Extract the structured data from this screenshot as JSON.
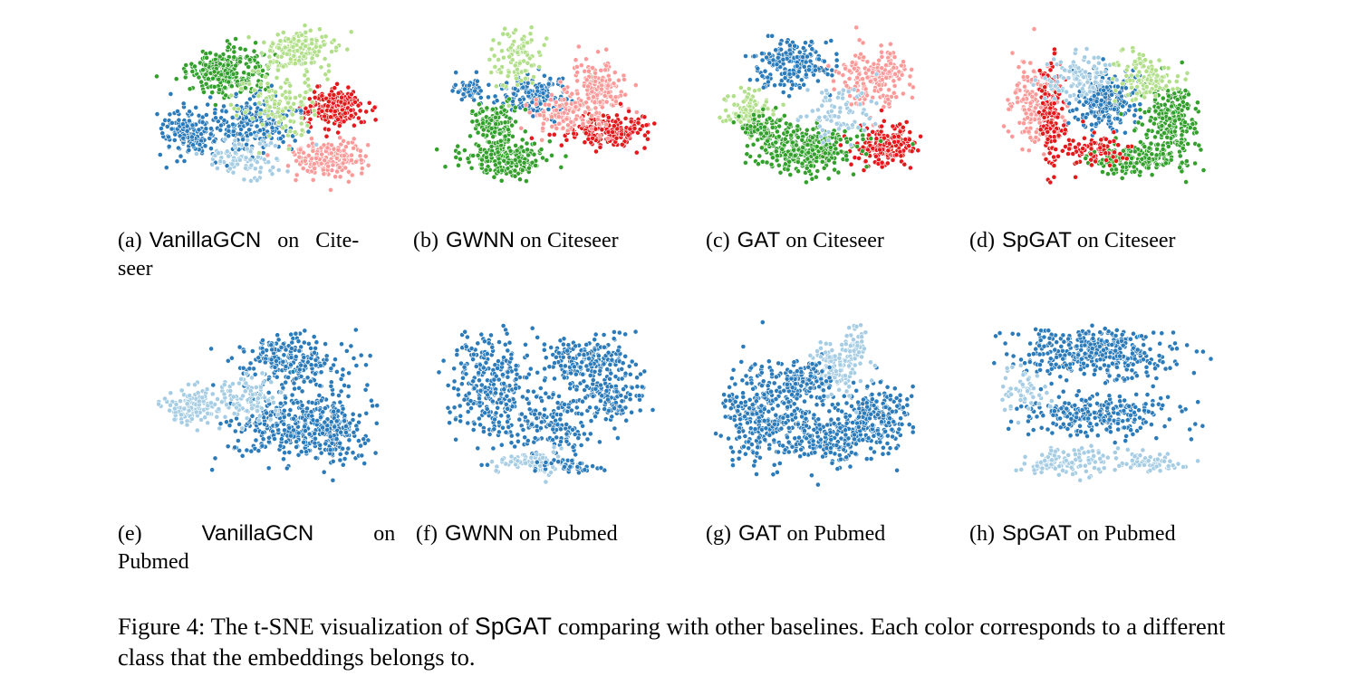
{
  "figure": {
    "caption_prefix": "Figure 4: The t-SNE visualization of",
    "caption_method": "SpGAT",
    "caption_rest": "comparing with other baselines. Each color corresponds to a different class that the embeddings belongs to."
  },
  "class_colors": {
    "dark_blue": "#2b7bba",
    "light_blue": "#a6cde3",
    "dark_green": "#33a02c",
    "light_green": "#b2df8a",
    "red": "#e31a1c",
    "pink": "#fb9a99"
  },
  "panels": [
    {
      "id": "a",
      "tag": "(a)",
      "method": "VanillaGCN",
      "rest": "on Citeseer",
      "dataset": "Citeseer",
      "point_colors": [
        "dark_blue",
        "light_blue",
        "dark_green",
        "light_green",
        "red",
        "pink"
      ],
      "caption_line1": "VanillaGCN   on   Cite-",
      "caption_line2": "seer"
    },
    {
      "id": "b",
      "tag": "(b)",
      "method": "GWNN",
      "rest": "on Citeseer",
      "dataset": "Citeseer",
      "point_colors": [
        "dark_blue",
        "light_blue",
        "dark_green",
        "light_green",
        "red",
        "pink"
      ]
    },
    {
      "id": "c",
      "tag": "(c)",
      "method": "GAT",
      "rest": "on Citeseer",
      "dataset": "Citeseer",
      "point_colors": [
        "dark_blue",
        "light_blue",
        "dark_green",
        "light_green",
        "red",
        "pink"
      ]
    },
    {
      "id": "d",
      "tag": "(d)",
      "method": "SpGAT",
      "rest": "on Citeseer",
      "dataset": "Citeseer",
      "point_colors": [
        "dark_blue",
        "light_blue",
        "dark_green",
        "light_green",
        "red",
        "pink"
      ]
    },
    {
      "id": "e",
      "tag": "(e)",
      "method": "VanillaGCN",
      "rest": "on Pubmed",
      "dataset": "Pubmed",
      "point_colors": [
        "dark_blue",
        "light_blue",
        "light_green"
      ],
      "caption_line1": "VanillaGCN       on",
      "caption_line2": "Pubmed"
    },
    {
      "id": "f",
      "tag": "(f)",
      "method": "GWNN",
      "rest": "on Pubmed",
      "dataset": "Pubmed",
      "point_colors": [
        "dark_blue",
        "light_blue",
        "light_green"
      ]
    },
    {
      "id": "g",
      "tag": "(g)",
      "method": "GAT",
      "rest": "on Pubmed",
      "dataset": "Pubmed",
      "point_colors": [
        "dark_blue",
        "light_blue",
        "light_green"
      ]
    },
    {
      "id": "h",
      "tag": "(h)",
      "method": "SpGAT",
      "rest": "on Pubmed",
      "dataset": "Pubmed",
      "point_colors": [
        "dark_blue",
        "light_blue",
        "light_green"
      ]
    }
  ]
}
